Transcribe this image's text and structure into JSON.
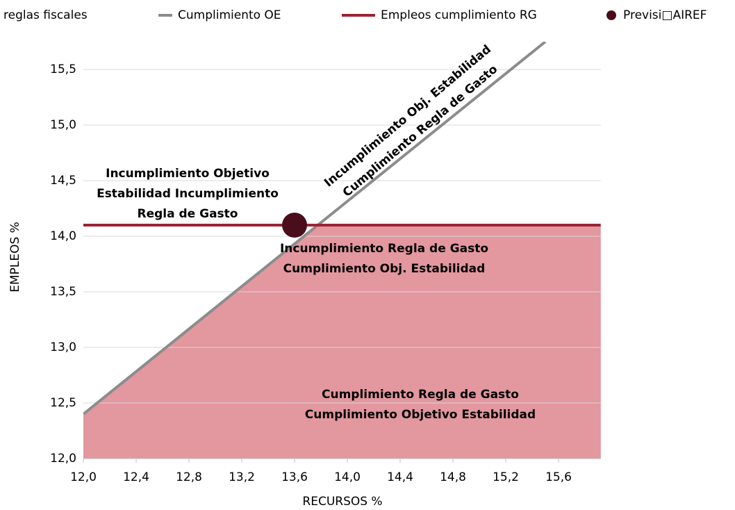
{
  "chart_data": {
    "type": "line",
    "title": "reglas fiscales",
    "x_label": "RECURSOS %",
    "y_label": "EMPLEOS %",
    "xlim": [
      12.0,
      15.92
    ],
    "ylim": [
      12.0,
      15.75
    ],
    "xticks": [
      {
        "value": 12.0,
        "label": "12,0"
      },
      {
        "value": 12.4,
        "label": "12,4"
      },
      {
        "value": 12.8,
        "label": "12,8"
      },
      {
        "value": 13.2,
        "label": "13,2"
      },
      {
        "value": 13.6,
        "label": "13,6"
      },
      {
        "value": 14.0,
        "label": "14,0"
      },
      {
        "value": 14.4,
        "label": "14,4"
      },
      {
        "value": 14.8,
        "label": "14,8"
      },
      {
        "value": 15.2,
        "label": "15,2"
      },
      {
        "value": 15.6,
        "label": "15,6"
      }
    ],
    "yticks": [
      {
        "value": 12.0,
        "label": "12,0"
      },
      {
        "value": 12.5,
        "label": "12,5"
      },
      {
        "value": 13.0,
        "label": "13,0"
      },
      {
        "value": 13.5,
        "label": "13,5"
      },
      {
        "value": 14.0,
        "label": "14,0"
      },
      {
        "value": 14.5,
        "label": "14,5"
      },
      {
        "value": 15.0,
        "label": "15,0"
      },
      {
        "value": 15.5,
        "label": "15,5"
      }
    ],
    "grid": true,
    "area_color": "#e3979f",
    "series": [
      {
        "name": "Cumplimiento OE",
        "color": "#8c8c8c",
        "x": [
          12.0,
          15.5
        ],
        "values": [
          12.4,
          15.75
        ]
      },
      {
        "name": "Empleos cumplimiento RG",
        "color": "#9b2335",
        "x": [
          12.0,
          15.92
        ],
        "values": [
          14.1,
          14.1
        ]
      },
      {
        "name": "Previsi□AIREF",
        "color": "#4a0d1c",
        "type": "scatter",
        "x": [
          13.6
        ],
        "values": [
          14.1
        ]
      }
    ],
    "annotations": [
      [
        "Incumplimiento Objetivo",
        "Estabilidad Incumplimiento",
        "Regla de Gasto"
      ],
      [
        "Incumplimiento Regla de Gasto",
        "Cumplimiento Obj. Estabilidad"
      ],
      [
        "Cumplimiento Regla de Gasto",
        "Cumplimiento Objetivo Estabilidad"
      ],
      [
        "Incumplimiento Obj. Estabilidad",
        "Cumplimiento Regla de Gasto"
      ]
    ]
  }
}
